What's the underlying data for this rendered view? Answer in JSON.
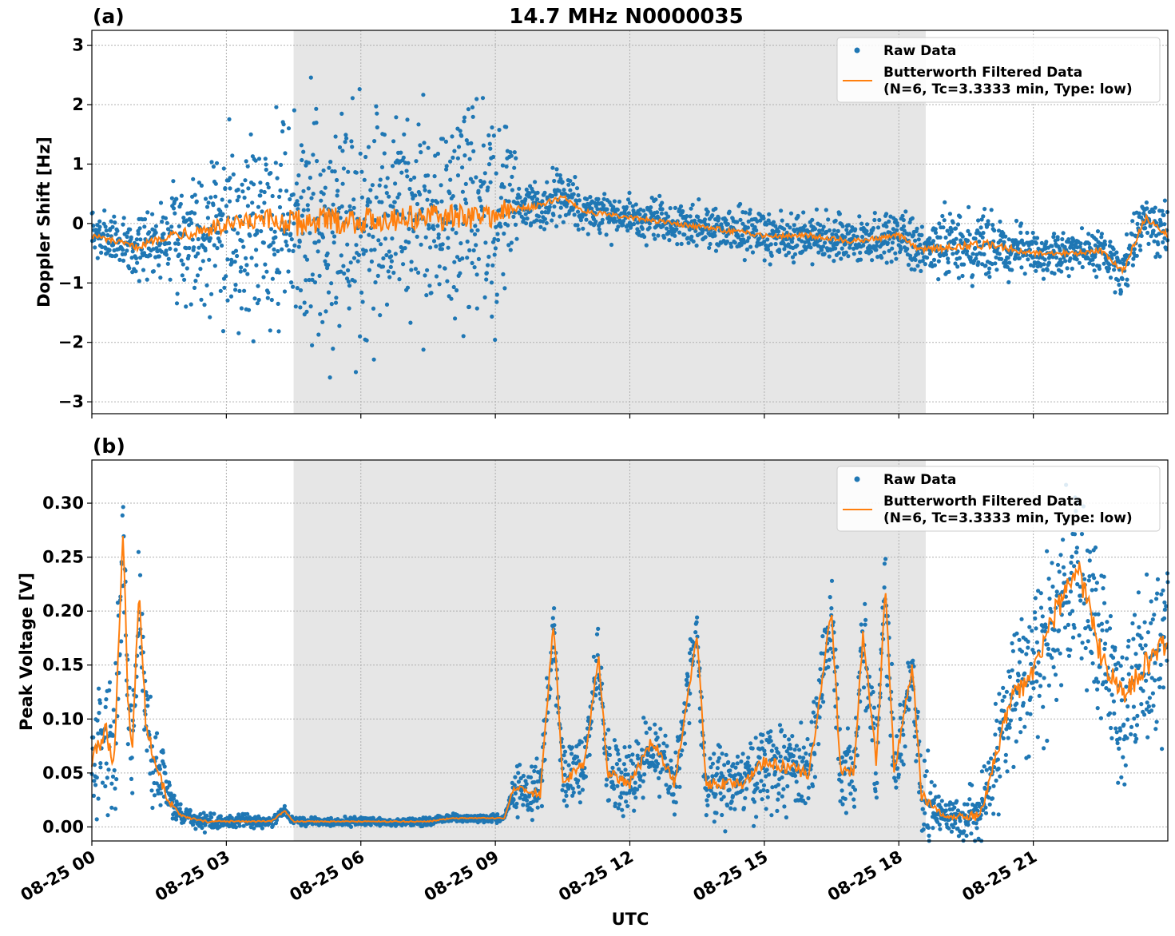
{
  "figure": {
    "title": "14.7 MHz N0000035",
    "xlabel": "UTC"
  },
  "colors": {
    "raw": "#1f77b4",
    "filtered": "#ff7f0e",
    "night_shade": "#e6e6e6",
    "grid": "#b0b0b0"
  },
  "chart_data": [
    {
      "type": "scatter",
      "panel": "(a)",
      "ylabel": "Doppler Shift [Hz]",
      "xlim": [
        0,
        24
      ],
      "ylim": [
        -3.2,
        3.25
      ],
      "x_unit": "hours since 08-25 00 UTC",
      "x_ticks": [
        0,
        3,
        6,
        9,
        12,
        15,
        18,
        21
      ],
      "y_ticks": [
        -3,
        -2,
        -1,
        0,
        1,
        2,
        3
      ],
      "y_tick_labels": [
        "−3",
        "−2",
        "−1",
        "0",
        "1",
        "2",
        "3"
      ],
      "shaded_span": [
        4.5,
        18.6
      ],
      "grid": true,
      "legend_position": "upper right",
      "legend": [
        "Raw Data",
        "Butterworth Filtered Data",
        "(N=6, Tc=3.3333 min, Type: low)"
      ],
      "series": [
        {
          "name": "Raw Data",
          "kind": "scatter",
          "trend": [
            [
              0,
              -0.2
            ],
            [
              1,
              -0.4
            ],
            [
              1.5,
              -0.25
            ],
            [
              2,
              -0.15
            ],
            [
              3,
              -0.05
            ],
            [
              4,
              0.05
            ],
            [
              4.5,
              0.0
            ],
            [
              5,
              0.05
            ],
            [
              6,
              0.05
            ],
            [
              7,
              0.1
            ],
            [
              8,
              0.1
            ],
            [
              9,
              0.15
            ],
            [
              9.5,
              0.25
            ],
            [
              10,
              0.3
            ],
            [
              10.5,
              0.45
            ],
            [
              11,
              0.2
            ],
            [
              12,
              0.1
            ],
            [
              13,
              0.0
            ],
            [
              14,
              -0.1
            ],
            [
              15,
              -0.2
            ],
            [
              16,
              -0.2
            ],
            [
              17,
              -0.3
            ],
            [
              18,
              -0.2
            ],
            [
              18.5,
              -0.45
            ],
            [
              19,
              -0.4
            ],
            [
              20,
              -0.35
            ],
            [
              21,
              -0.5
            ],
            [
              22,
              -0.5
            ],
            [
              22.5,
              -0.45
            ],
            [
              23,
              -0.8
            ],
            [
              23.5,
              0.1
            ],
            [
              24,
              -0.2
            ]
          ],
          "spread": [
            [
              0,
              0.3
            ],
            [
              1.5,
              0.4
            ],
            [
              2,
              0.8
            ],
            [
              3,
              1.1
            ],
            [
              4.5,
              1.5
            ],
            [
              9.3,
              1.4
            ],
            [
              9.5,
              0.35
            ],
            [
              12,
              0.25
            ],
            [
              15,
              0.3
            ],
            [
              17,
              0.3
            ],
            [
              18.6,
              0.3
            ],
            [
              19,
              0.45
            ],
            [
              20,
              0.5
            ],
            [
              21,
              0.25
            ],
            [
              24,
              0.35
            ]
          ]
        },
        {
          "name": "Butterworth Filtered Data",
          "kind": "line",
          "trend": [
            [
              0,
              -0.2
            ],
            [
              1,
              -0.4
            ],
            [
              1.5,
              -0.25
            ],
            [
              2,
              -0.15
            ],
            [
              3,
              -0.05
            ],
            [
              4,
              0.05
            ],
            [
              4.5,
              0.0
            ],
            [
              5,
              0.05
            ],
            [
              6,
              0.05
            ],
            [
              7,
              0.1
            ],
            [
              8,
              0.1
            ],
            [
              9,
              0.15
            ],
            [
              9.5,
              0.25
            ],
            [
              10,
              0.3
            ],
            [
              10.5,
              0.45
            ],
            [
              11,
              0.2
            ],
            [
              12,
              0.1
            ],
            [
              13,
              0.0
            ],
            [
              14,
              -0.1
            ],
            [
              15,
              -0.2
            ],
            [
              16,
              -0.2
            ],
            [
              17,
              -0.3
            ],
            [
              18,
              -0.2
            ],
            [
              18.5,
              -0.45
            ],
            [
              19,
              -0.4
            ],
            [
              20,
              -0.35
            ],
            [
              21,
              -0.5
            ],
            [
              22,
              -0.5
            ],
            [
              22.5,
              -0.45
            ],
            [
              23,
              -0.8
            ],
            [
              23.5,
              0.1
            ],
            [
              24,
              -0.2
            ]
          ],
          "wiggle": 0.15
        }
      ]
    },
    {
      "type": "scatter",
      "panel": "(b)",
      "ylabel": "Peak Voltage [V]",
      "xlim": [
        0,
        24
      ],
      "ylim": [
        -0.013,
        0.34
      ],
      "x_unit": "hours since 08-25 00 UTC",
      "x_ticks": [
        0,
        3,
        6,
        9,
        12,
        15,
        18,
        21
      ],
      "x_tick_labels": [
        "08-25 00",
        "08-25 03",
        "08-25 06",
        "08-25 09",
        "08-25 12",
        "08-25 15",
        "08-25 18",
        "08-25 21"
      ],
      "y_ticks": [
        0.0,
        0.05,
        0.1,
        0.15,
        0.2,
        0.25,
        0.3
      ],
      "y_tick_labels": [
        "0.00",
        "0.05",
        "0.10",
        "0.15",
        "0.20",
        "0.25",
        "0.30"
      ],
      "shaded_span": [
        4.5,
        18.6
      ],
      "grid": true,
      "legend_position": "upper right",
      "legend": [
        "Raw Data",
        "Butterworth Filtered Data",
        "(N=6, Tc=3.3333 min, Type: low)"
      ],
      "series": [
        {
          "name": "Raw Data",
          "kind": "scatter",
          "trend": [
            [
              0,
              0.06
            ],
            [
              0.3,
              0.09
            ],
            [
              0.5,
              0.06
            ],
            [
              0.7,
              0.28
            ],
            [
              0.8,
              0.12
            ],
            [
              0.9,
              0.07
            ],
            [
              1.05,
              0.22
            ],
            [
              1.2,
              0.1
            ],
            [
              1.4,
              0.06
            ],
            [
              1.7,
              0.025
            ],
            [
              2.0,
              0.01
            ],
            [
              2.5,
              0.005
            ],
            [
              4.0,
              0.005
            ],
            [
              4.3,
              0.015
            ],
            [
              4.5,
              0.005
            ],
            [
              7.5,
              0.005
            ],
            [
              8.0,
              0.008
            ],
            [
              9.2,
              0.008
            ],
            [
              9.4,
              0.035
            ],
            [
              10.0,
              0.03
            ],
            [
              10.3,
              0.19
            ],
            [
              10.5,
              0.04
            ],
            [
              11.0,
              0.06
            ],
            [
              11.3,
              0.16
            ],
            [
              11.5,
              0.05
            ],
            [
              12.0,
              0.04
            ],
            [
              12.5,
              0.08
            ],
            [
              13.0,
              0.04
            ],
            [
              13.5,
              0.18
            ],
            [
              13.7,
              0.04
            ],
            [
              14.5,
              0.04
            ],
            [
              15.0,
              0.06
            ],
            [
              16.0,
              0.05
            ],
            [
              16.5,
              0.2
            ],
            [
              16.7,
              0.05
            ],
            [
              17.0,
              0.05
            ],
            [
              17.2,
              0.18
            ],
            [
              17.5,
              0.06
            ],
            [
              17.7,
              0.22
            ],
            [
              17.9,
              0.05
            ],
            [
              18.3,
              0.15
            ],
            [
              18.5,
              0.03
            ],
            [
              19.0,
              0.01
            ],
            [
              19.8,
              0.01
            ],
            [
              20.0,
              0.04
            ],
            [
              20.5,
              0.12
            ],
            [
              21.0,
              0.14
            ],
            [
              21.5,
              0.2
            ],
            [
              22.0,
              0.24
            ],
            [
              22.5,
              0.16
            ],
            [
              23.0,
              0.12
            ],
            [
              23.5,
              0.15
            ],
            [
              24.0,
              0.17
            ]
          ],
          "spread": [
            [
              0,
              0.05
            ],
            [
              1.5,
              0.03
            ],
            [
              2.0,
              0.006
            ],
            [
              4.5,
              0.003
            ],
            [
              9.3,
              0.003
            ],
            [
              9.5,
              0.02
            ],
            [
              12,
              0.025
            ],
            [
              16,
              0.03
            ],
            [
              18.6,
              0.03
            ],
            [
              19,
              0.008
            ],
            [
              20,
              0.03
            ],
            [
              21,
              0.06
            ],
            [
              24,
              0.06
            ]
          ]
        },
        {
          "name": "Butterworth Filtered Data",
          "kind": "line",
          "trend": [
            [
              0,
              0.06
            ],
            [
              0.3,
              0.09
            ],
            [
              0.5,
              0.06
            ],
            [
              0.7,
              0.28
            ],
            [
              0.8,
              0.12
            ],
            [
              0.9,
              0.07
            ],
            [
              1.05,
              0.22
            ],
            [
              1.2,
              0.1
            ],
            [
              1.4,
              0.06
            ],
            [
              1.7,
              0.025
            ],
            [
              2.0,
              0.01
            ],
            [
              2.5,
              0.005
            ],
            [
              4.0,
              0.005
            ],
            [
              4.3,
              0.015
            ],
            [
              4.5,
              0.005
            ],
            [
              7.5,
              0.005
            ],
            [
              8.0,
              0.008
            ],
            [
              9.2,
              0.008
            ],
            [
              9.4,
              0.035
            ],
            [
              10.0,
              0.03
            ],
            [
              10.3,
              0.19
            ],
            [
              10.5,
              0.04
            ],
            [
              11.0,
              0.06
            ],
            [
              11.3,
              0.16
            ],
            [
              11.5,
              0.05
            ],
            [
              12.0,
              0.04
            ],
            [
              12.5,
              0.08
            ],
            [
              13.0,
              0.04
            ],
            [
              13.5,
              0.18
            ],
            [
              13.7,
              0.04
            ],
            [
              14.5,
              0.04
            ],
            [
              15.0,
              0.06
            ],
            [
              16.0,
              0.05
            ],
            [
              16.5,
              0.2
            ],
            [
              16.7,
              0.05
            ],
            [
              17.0,
              0.05
            ],
            [
              17.2,
              0.18
            ],
            [
              17.5,
              0.06
            ],
            [
              17.7,
              0.22
            ],
            [
              17.9,
              0.05
            ],
            [
              18.3,
              0.15
            ],
            [
              18.5,
              0.03
            ],
            [
              19.0,
              0.01
            ],
            [
              19.8,
              0.01
            ],
            [
              20.0,
              0.04
            ],
            [
              20.5,
              0.12
            ],
            [
              21.0,
              0.14
            ],
            [
              21.5,
              0.2
            ],
            [
              22.0,
              0.24
            ],
            [
              22.5,
              0.16
            ],
            [
              23.0,
              0.12
            ],
            [
              23.5,
              0.15
            ],
            [
              24.0,
              0.17
            ]
          ],
          "wiggle": 0.2
        }
      ]
    }
  ]
}
